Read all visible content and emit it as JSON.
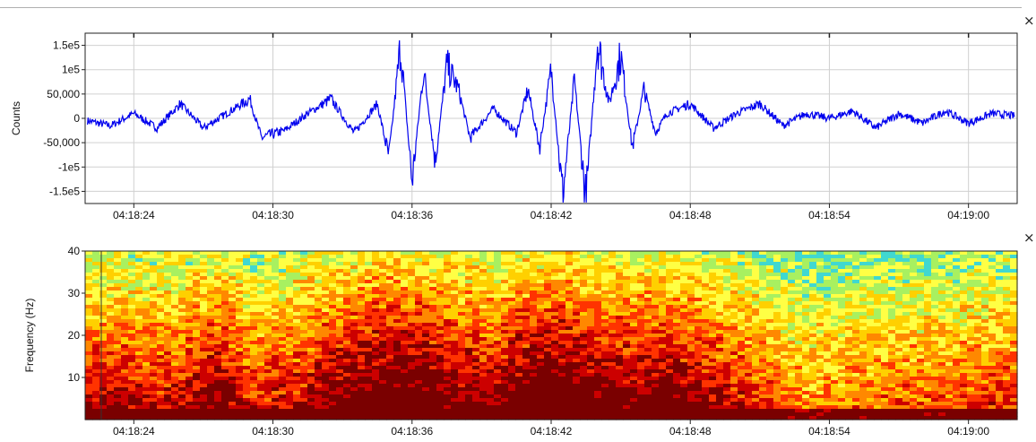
{
  "controls": {
    "close_label": "×"
  },
  "chart_data": [
    {
      "type": "line",
      "ylabel": "Counts",
      "ylim": [
        -175000,
        175000
      ],
      "grid": true,
      "line_color": "#0000ee",
      "y_ticks": [
        {
          "value": 150000,
          "label": "1.5e5"
        },
        {
          "value": 100000,
          "label": "1e5"
        },
        {
          "value": 50000,
          "label": "50,000"
        },
        {
          "value": 0,
          "label": "0"
        },
        {
          "value": -50000,
          "label": "-50,000"
        },
        {
          "value": -100000,
          "label": "-1e5"
        },
        {
          "value": -150000,
          "label": "-1.5e5"
        }
      ],
      "x_ticks": [
        {
          "value": 24,
          "label": "04:18:24"
        },
        {
          "value": 30,
          "label": "04:18:30"
        },
        {
          "value": 36,
          "label": "04:18:36"
        },
        {
          "value": 42,
          "label": "04:18:42"
        },
        {
          "value": 48,
          "label": "04:18:48"
        },
        {
          "value": 54,
          "label": "04:18:54"
        },
        {
          "value": 60,
          "label": "04:19:00"
        }
      ],
      "xlim": [
        21.9,
        62.1
      ],
      "envelope": [
        [
          22.0,
          -5000
        ],
        [
          23.0,
          -15000
        ],
        [
          24.0,
          10000
        ],
        [
          25.0,
          -20000
        ],
        [
          26.0,
          30000
        ],
        [
          27.0,
          -20000
        ],
        [
          28.0,
          10000
        ],
        [
          29.0,
          40000
        ],
        [
          29.5,
          -40000
        ],
        [
          30.5,
          -25000
        ],
        [
          31.5,
          10000
        ],
        [
          32.5,
          40000
        ],
        [
          33.5,
          -30000
        ],
        [
          34.5,
          30000
        ],
        [
          35.0,
          -80000
        ],
        [
          35.5,
          150000
        ],
        [
          36.0,
          -130000
        ],
        [
          36.5,
          100000
        ],
        [
          37.0,
          -90000
        ],
        [
          37.5,
          110000
        ],
        [
          38.0,
          60000
        ],
        [
          38.5,
          -40000
        ],
        [
          39.5,
          20000
        ],
        [
          40.5,
          -30000
        ],
        [
          41.0,
          60000
        ],
        [
          41.5,
          -60000
        ],
        [
          42.0,
          100000
        ],
        [
          42.5,
          -160000
        ],
        [
          43.0,
          80000
        ],
        [
          43.5,
          -170000
        ],
        [
          44.0,
          160000
        ],
        [
          44.5,
          30000
        ],
        [
          45.0,
          130000
        ],
        [
          45.5,
          -60000
        ],
        [
          46.0,
          60000
        ],
        [
          46.5,
          -30000
        ],
        [
          47.0,
          10000
        ],
        [
          48.0,
          30000
        ],
        [
          49.0,
          -20000
        ],
        [
          50.0,
          10000
        ],
        [
          51.0,
          30000
        ],
        [
          52.0,
          -15000
        ],
        [
          53.0,
          10000
        ],
        [
          54.0,
          0
        ],
        [
          55.0,
          15000
        ],
        [
          56.0,
          -20000
        ],
        [
          57.0,
          10000
        ],
        [
          58.0,
          -10000
        ],
        [
          59.0,
          15000
        ],
        [
          60.0,
          -10000
        ],
        [
          61.0,
          10000
        ],
        [
          62.0,
          5000
        ]
      ]
    },
    {
      "type": "heatmap",
      "ylabel": "Frequency (Hz)",
      "ylim": [
        0,
        40
      ],
      "y_ticks": [
        {
          "value": 40,
          "label": "40"
        },
        {
          "value": 30,
          "label": "30"
        },
        {
          "value": 20,
          "label": "20"
        },
        {
          "value": 10,
          "label": "10"
        }
      ],
      "x_ticks": [
        {
          "value": 24,
          "label": "04:18:24"
        },
        {
          "value": 30,
          "label": "04:18:30"
        },
        {
          "value": 36,
          "label": "04:18:36"
        },
        {
          "value": 42,
          "label": "04:18:42"
        },
        {
          "value": 48,
          "label": "04:18:48"
        },
        {
          "value": 54,
          "label": "04:18:54"
        },
        {
          "value": 60,
          "label": "04:19:00"
        }
      ],
      "xlim": [
        21.9,
        62.1
      ],
      "colormap": [
        "#7a0000",
        "#cc0000",
        "#ff3300",
        "#ff8800",
        "#ffd000",
        "#ffff44",
        "#a8f060",
        "#40d8d0"
      ],
      "intensity_profile": [
        [
          22.0,
          0.6
        ],
        [
          24.0,
          0.55
        ],
        [
          26.0,
          0.55
        ],
        [
          27.5,
          0.7
        ],
        [
          29.0,
          0.5
        ],
        [
          31.0,
          0.55
        ],
        [
          33.0,
          0.75
        ],
        [
          35.0,
          0.85
        ],
        [
          36.5,
          0.8
        ],
        [
          38.0,
          0.7
        ],
        [
          39.5,
          0.65
        ],
        [
          41.0,
          0.8
        ],
        [
          42.5,
          0.85
        ],
        [
          44.0,
          0.75
        ],
        [
          45.5,
          0.7
        ],
        [
          47.0,
          0.72
        ],
        [
          49.0,
          0.6
        ],
        [
          51.0,
          0.45
        ],
        [
          53.0,
          0.3
        ],
        [
          55.0,
          0.35
        ],
        [
          57.0,
          0.38
        ],
        [
          59.0,
          0.4
        ],
        [
          61.0,
          0.45
        ],
        [
          62.0,
          0.45
        ]
      ]
    }
  ]
}
